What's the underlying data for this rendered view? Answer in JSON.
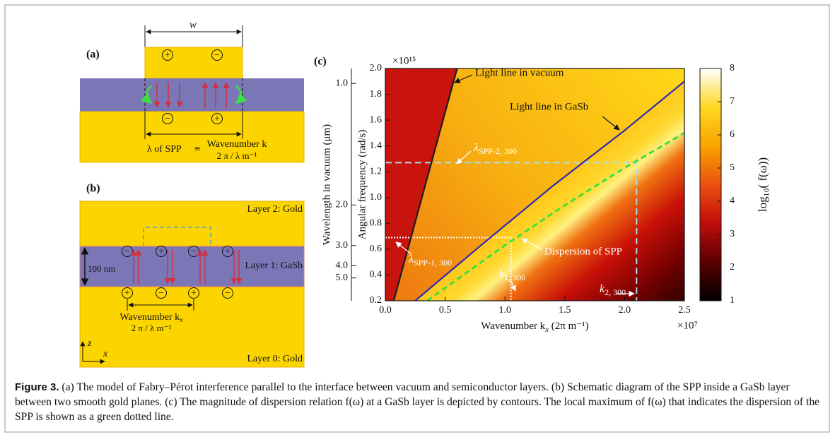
{
  "panel_a": {
    "label": "(a)",
    "width_label": "w",
    "charges_top": [
      "+",
      "−"
    ],
    "charges_bottom": [
      "−",
      "+"
    ],
    "relation": {
      "left": "λ of SPP",
      "equiv": "≡",
      "right_top": "Wavenumber k",
      "right_bottom": "2 π / λ m⁻¹"
    }
  },
  "panel_b": {
    "label": "(b)",
    "layer_2": "Layer 2: Gold",
    "layer_1": "Layer 1: GaSb",
    "layer_0": "Layer 0: Gold",
    "thickness": "100 nm",
    "charges_top": [
      "−",
      "+",
      "−",
      "+"
    ],
    "charges_bottom": [
      "+",
      "−",
      "+",
      "−"
    ],
    "wavenumber": {
      "text": "Wavenumber k",
      "sub": "x"
    },
    "wavenumber_unit": "2 π / λ m⁻¹",
    "axis_z": "z",
    "axis_x": "x"
  },
  "chart_data": {
    "type": "line",
    "panel_label": "(c)",
    "xlabel": {
      "text": "Wavenumber k",
      "sub": "x",
      "tail": " (2π m⁻¹)"
    },
    "x_multiplier": "×10⁷",
    "ylabel": "Angular frequency (rad/s)",
    "y_multiplier": "×10¹⁵",
    "y2label": "Wavelength in vacuum (μm)",
    "y2scale": "reciprocal",
    "xlim": [
      0,
      2.5
    ],
    "xticks": [
      {
        "value": 0,
        "label": "0.0"
      },
      0.5,
      {
        "value": 1,
        "label": "1.0"
      },
      1.5,
      {
        "value": 2,
        "label": "2.0"
      },
      2.5
    ],
    "ylim": [
      0.2,
      2.0
    ],
    "yticks": [
      0.2,
      0.4,
      0.6,
      0.8,
      {
        "value": 1,
        "label": "1.0"
      },
      1.2,
      1.4,
      1.6,
      1.8,
      {
        "value": 2,
        "label": "2.0"
      }
    ],
    "y2lim": [
      9.42,
      0.942
    ],
    "y2ticks": [
      {
        "value": 1,
        "label": "1.0"
      },
      {
        "value": 2,
        "label": "2.0"
      },
      {
        "value": 3,
        "label": "3.0"
      },
      {
        "value": 4,
        "label": "4.0"
      },
      {
        "value": 5,
        "label": "5.0"
      }
    ],
    "series": [
      {
        "name": "Light line in vacuum",
        "color": "#1a1a1a",
        "dash": false,
        "x": [
          0.07,
          0.6
        ],
        "values": [
          0.2,
          2.0
        ]
      },
      {
        "name": "Light line in GaSb",
        "color": "#2b2bb8",
        "dash": false,
        "x": [
          0.25,
          0.8,
          1.4,
          2.0,
          2.5
        ],
        "values": [
          0.2,
          0.63,
          1.09,
          1.52,
          1.9
        ]
      },
      {
        "name": "Dispersion of SPP",
        "color": "#3ee03c",
        "dash": true,
        "x": [
          0.35,
          1.0,
          1.5,
          2.0,
          2.5
        ],
        "values": [
          0.2,
          0.63,
          0.94,
          1.23,
          1.5
        ]
      }
    ],
    "guides": [
      {
        "color": "#a8dff0",
        "style": "dashed",
        "x": [
          0,
          2.1,
          2.1
        ],
        "values": [
          1.27,
          1.27,
          0.2
        ]
      },
      {
        "color": "#ffffff",
        "style": "dotted",
        "x": [
          0,
          1.05,
          1.05
        ],
        "values": [
          0.69,
          0.69,
          0.2
        ]
      }
    ],
    "annotations": [
      {
        "text": "λ",
        "sub": "SPP-2, 300"
      },
      {
        "text": "λ",
        "sub": "SPP-1, 300"
      },
      {
        "text": "k",
        "sub": "1, 300"
      },
      {
        "text": "k",
        "sub": "2, 300"
      }
    ],
    "colorbar": {
      "label": "log₁₀( f(ω))",
      "lim": [
        1,
        8
      ],
      "ticks": [
        1,
        2,
        3,
        4,
        5,
        6,
        7,
        8
      ],
      "colormap": [
        "#000000",
        "#5a0000",
        "#c00c0c",
        "#ec5010",
        "#f8a400",
        "#ffd820",
        "#ffffff"
      ]
    }
  },
  "caption": {
    "label": "Figure 3.",
    "text": "(a) The model of Fabry–Pérot interference parallel to the interface between vacuum and semiconductor layers. (b) Schematic diagram of the SPP inside a GaSb layer between two smooth gold planes. (c) The magnitude of dispersion relation f(ω) at a GaSb layer is depicted by contours. The local maximum of f(ω) that indicates the dispersion of the SPP is shown as a green dotted line."
  }
}
